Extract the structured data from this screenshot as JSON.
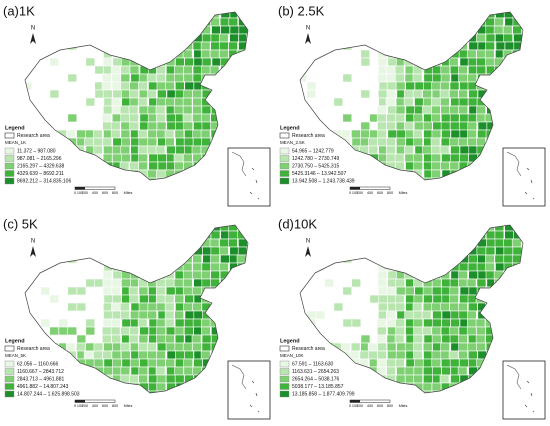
{
  "class_colors": [
    "#e8f6e4",
    "#b9e6b0",
    "#7fd073",
    "#3fb23a",
    "#1c8f2a"
  ],
  "panels": [
    {
      "label": "(a)1K",
      "north": "N",
      "legend_title": "Legend",
      "research_area": "Research area",
      "field": "MEAN_1K",
      "classes": [
        "11.372 – 987.080",
        "987.081 – 2165.296",
        "2165.297 – 4329.638",
        "4329.639 – 8692.211",
        "8692.212 – 314.835.106"
      ],
      "scale": [
        "0",
        "100",
        "200",
        "400",
        "600",
        "800",
        "Miles"
      ]
    },
    {
      "label": "(b) 2.5K",
      "north": "N",
      "legend_title": "Legend",
      "research_area": "Research area",
      "field": "MEAN_2.5K",
      "classes": [
        "54.965 – 1242.779",
        "1242.780 – 2730.749",
        "2730.750 – 5425.315",
        "5425.3146 – 13.942.507",
        "13.942.508 – 1.243.738.439"
      ],
      "scale": [
        "0",
        "100",
        "200",
        "400",
        "600",
        "800",
        "Miles"
      ]
    },
    {
      "label": "(c)  5K",
      "north": "N",
      "legend_title": "Legend",
      "research_area": "Research area",
      "field": "MEAN_5K",
      "classes": [
        "62.056 – 1160.666",
        "1160.667 – 2843.712",
        "2843.713 – 4961.881",
        "4961.882 – 14.807.243",
        "14.807.244 – 1.625.898.503"
      ],
      "scale": [
        "0",
        "100",
        "200",
        "400",
        "600",
        "800",
        "Miles"
      ]
    },
    {
      "label": "(d)10K",
      "north": "N",
      "legend_title": "Legend",
      "research_area": "Research area",
      "field": "MEAN_10K",
      "classes": [
        "67.591 – 1163.630",
        "1163.631 – 2654.263",
        "2654.264 – 5038.176",
        "5038.177 – 13.185.857",
        "13.185.858 – 1.877.409.799"
      ],
      "scale": [
        "0",
        "100",
        "200",
        "400",
        "600",
        "800",
        "Miles"
      ]
    }
  ]
}
